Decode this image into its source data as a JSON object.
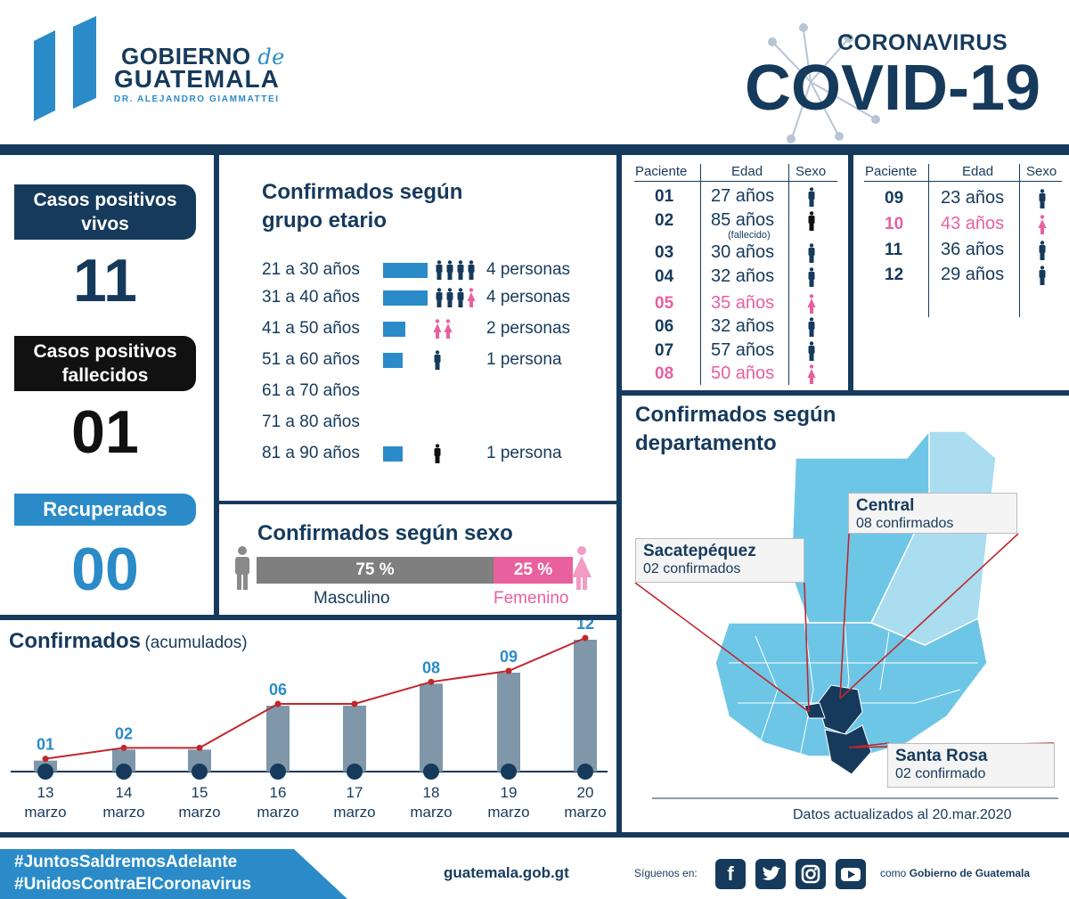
{
  "header": {
    "gov_line1": "GOBIERNO",
    "gov_de": "de",
    "gov_line2": "GUATEMALA",
    "gov_line3": "DR. ALEJANDRO GIAMMATTEI",
    "corona": "CORONAVIRUS",
    "covid": "COVID-19"
  },
  "stats": {
    "vivos_label_1": "Casos positivos",
    "vivos_label_2": "vivos",
    "vivos_value": "11",
    "fallecidos_label_1": "Casos positivos",
    "fallecidos_label_2": "fallecidos",
    "fallecidos_value": "01",
    "recuperados_label": "Recuperados",
    "recuperados_value": "00"
  },
  "age_group": {
    "title_1": "Confirmados según",
    "title_2": "grupo etario",
    "rows": [
      {
        "label": "21 a 30 años",
        "count_value": 4,
        "icons": "mmmm",
        "count": "4 personas"
      },
      {
        "label": "31 a 40 años",
        "count_value": 4,
        "icons": "mmmf",
        "count": "4 personas"
      },
      {
        "label": "41 a 50 años",
        "count_value": 2,
        "icons": "ff",
        "count": "2 personas"
      },
      {
        "label": "51 a 60 años",
        "count_value": 1,
        "icons": "m",
        "count": "1 persona"
      },
      {
        "label": "61 a 70 años",
        "count_value": 0,
        "icons": "",
        "count": ""
      },
      {
        "label": "71 a 80 años",
        "count_value": 0,
        "icons": "",
        "count": ""
      },
      {
        "label": "81 a 90 años",
        "count_value": 1,
        "icons": "d",
        "count": "1 persona"
      }
    ]
  },
  "sex": {
    "title": "Confirmados según sexo",
    "male_pct_value": 75,
    "male_pct": "75 %",
    "female_pct": "25 %",
    "male_label": "Masculino",
    "female_label": "Femenino"
  },
  "patients": {
    "headers": {
      "paciente": "Paciente",
      "edad": "Edad",
      "sexo": "Sexo"
    },
    "left": [
      {
        "id": "01",
        "age": "27 años",
        "sex": "m"
      },
      {
        "id": "02",
        "age": "85 años",
        "sex": "d",
        "note": "(fallecido)"
      },
      {
        "id": "03",
        "age": "30 años",
        "sex": "m"
      },
      {
        "id": "04",
        "age": "32 años",
        "sex": "m"
      },
      {
        "id": "05",
        "age": "35 años",
        "sex": "f"
      },
      {
        "id": "06",
        "age": "32 años",
        "sex": "m"
      },
      {
        "id": "07",
        "age": "57 años",
        "sex": "m"
      },
      {
        "id": "08",
        "age": "50 años",
        "sex": "f"
      }
    ],
    "right": [
      {
        "id": "09",
        "age": "23 años",
        "sex": "m"
      },
      {
        "id": "10",
        "age": "43 años",
        "sex": "f"
      },
      {
        "id": "11",
        "age": "36 años",
        "sex": "m"
      },
      {
        "id": "12",
        "age": "29 años",
        "sex": "m"
      }
    ]
  },
  "map": {
    "title_1": "Confirmados según",
    "title_2": "departamento",
    "central_name": "Central",
    "central_count": "08 confirmados",
    "sacate_name": "Sacatepéquez",
    "sacate_count": "02 confirmados",
    "santarosa_name": "Santa Rosa",
    "santarosa_count": "02 confirmado",
    "updated": "Datos actualizados al 20.mar.2020"
  },
  "chart": {
    "title": "Confirmados",
    "subtitle": "(acumulados)"
  },
  "chart_data": {
    "type": "bar",
    "title": "Confirmados",
    "subtitle": "(acumulados)",
    "categories": [
      "13 marzo",
      "14 marzo",
      "15 marzo",
      "16 marzo",
      "17 marzo",
      "18 marzo",
      "19 marzo",
      "20 marzo"
    ],
    "category_day": [
      "13",
      "14",
      "15",
      "16",
      "17",
      "18",
      "19",
      "20"
    ],
    "category_month": [
      "marzo",
      "marzo",
      "marzo",
      "marzo",
      "marzo",
      "marzo",
      "marzo",
      "marzo"
    ],
    "values": [
      1,
      2,
      2,
      6,
      6,
      8,
      9,
      12
    ],
    "labels": [
      "01",
      "02",
      "",
      "06",
      "",
      "08",
      "09",
      "12"
    ],
    "ylim": [
      0,
      12
    ],
    "bar_color": "#7f97a9",
    "line_color": "#c0272d"
  },
  "footer": {
    "hashtag1": "#JuntosSaldremosAdelante",
    "hashtag2": "#UnidosContraElCoronavirus",
    "site": "guatemala.gob.gt",
    "follow": "Síguenos en:",
    "como_prefix": "como ",
    "como_name": "Gobierno de Guatemala"
  },
  "colors": {
    "navy": "#163a5c",
    "blue": "#2a8bc8",
    "pink": "#e9609e",
    "grey": "#7f7f7f",
    "black": "#111111"
  }
}
